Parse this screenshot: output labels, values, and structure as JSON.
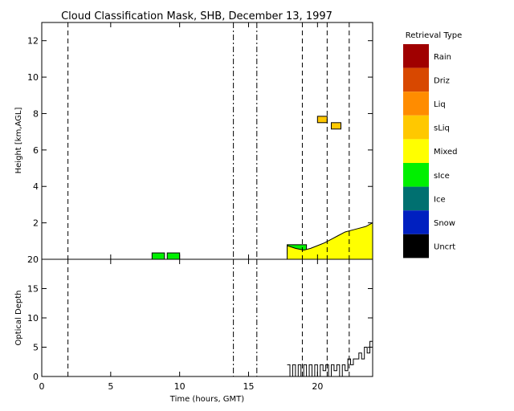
{
  "chart_data": [
    {
      "type": "heatmap",
      "title": "Cloud Classification Mask, SHB, December 13, 1997",
      "xlim": [
        0,
        24
      ],
      "ylim": [
        0,
        13
      ],
      "ylabel": "Height [km,AGL]",
      "yticks": [
        2,
        4,
        6,
        8,
        10,
        12
      ],
      "vertical_lines": [
        {
          "x": 1.9,
          "style": "dashed"
        },
        {
          "x": 13.9,
          "style": "dashdot"
        },
        {
          "x": 15.6,
          "style": "dashdot"
        },
        {
          "x": 18.9,
          "style": "dashed"
        },
        {
          "x": 20.7,
          "style": "dashed"
        },
        {
          "x": 22.3,
          "style": "dashed"
        }
      ],
      "legend": {
        "title": "Retrieval Type",
        "entries": [
          {
            "label": "Rain",
            "color": "#a00000"
          },
          {
            "label": "Driz",
            "color": "#d84800"
          },
          {
            "label": "Liq",
            "color": "#ff8c00"
          },
          {
            "label": "sLiq",
            "color": "#ffc800"
          },
          {
            "label": "Mixed",
            "color": "#ffff00"
          },
          {
            "label": "sIce",
            "color": "#00f000"
          },
          {
            "label": "Ice",
            "color": "#007070"
          },
          {
            "label": "Snow",
            "color": "#0020c0"
          },
          {
            "label": "Uncrt",
            "color": "#000000"
          }
        ]
      },
      "regions": [
        {
          "type": "sIce",
          "x0": 8.0,
          "x1": 8.9,
          "y0": 0.0,
          "y1": 0.35
        },
        {
          "type": "sIce",
          "x0": 9.1,
          "x1": 10.0,
          "y0": 0.0,
          "y1": 0.35
        },
        {
          "type": "sIce",
          "x0": 17.8,
          "x1": 19.2,
          "y0": 0.3,
          "y1": 0.8
        },
        {
          "type": "sLiq",
          "x0": 20.0,
          "x1": 20.7,
          "y0": 7.5,
          "y1": 7.85
        },
        {
          "type": "sLiq",
          "x0": 21.0,
          "x1": 21.7,
          "y0": 7.15,
          "y1": 7.5
        }
      ],
      "mixed_layer": {
        "x": [
          17.8,
          18.4,
          19.0,
          19.5,
          20.0,
          20.5,
          21.0,
          21.5,
          22.0,
          22.5,
          23.0,
          23.5,
          24.0
        ],
        "top": [
          0.75,
          0.6,
          0.5,
          0.6,
          0.75,
          0.9,
          1.1,
          1.3,
          1.5,
          1.6,
          1.7,
          1.8,
          2.0
        ]
      }
    },
    {
      "type": "line",
      "xlabel": "Time (hours, GMT)",
      "ylabel": "Optical Depth",
      "xlim": [
        0,
        24
      ],
      "ylim": [
        0,
        20
      ],
      "xticks": [
        0,
        5,
        10,
        15,
        20
      ],
      "yticks": [
        0,
        5,
        10,
        15,
        20
      ],
      "x": [
        17.8,
        18.0,
        18.2,
        18.4,
        18.6,
        18.8,
        19.0,
        19.2,
        19.4,
        19.6,
        19.8,
        20.0,
        20.2,
        20.4,
        20.6,
        20.8,
        21.0,
        21.2,
        21.4,
        21.6,
        21.8,
        22.0,
        22.2,
        22.4,
        22.6,
        22.8,
        23.0,
        23.2,
        23.4,
        23.6,
        23.8,
        24.0
      ],
      "values": [
        2,
        0,
        2,
        0,
        2,
        0,
        2,
        0,
        2,
        0,
        2,
        0,
        2,
        1,
        2,
        0,
        2,
        1,
        2,
        0,
        2,
        1,
        3,
        2,
        3,
        3,
        4,
        3,
        5,
        4,
        6,
        5
      ]
    }
  ]
}
